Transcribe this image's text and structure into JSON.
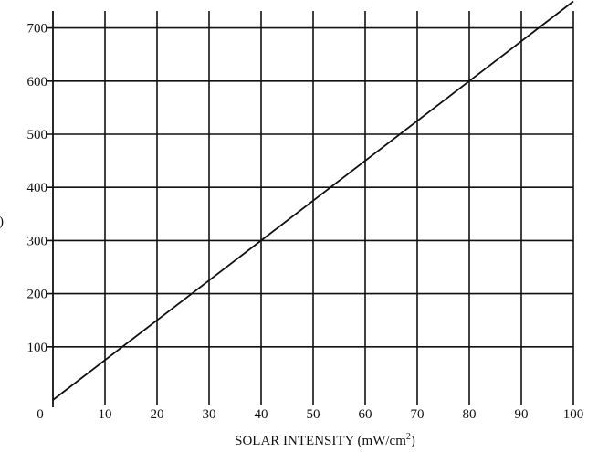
{
  "chart_data": {
    "type": "line",
    "title": "",
    "xlabel": "SOLAR INTENSITY (mW/cm²)",
    "xlabel_parts": {
      "main": "SOLAR INTENSITY (mW/cm",
      "sup": "2",
      "close": ")"
    },
    "ylabel_partial": ")",
    "xlim": [
      0,
      100
    ],
    "ylim": [
      0,
      700
    ],
    "x_ticks": [
      0,
      10,
      20,
      30,
      40,
      50,
      60,
      70,
      80,
      90,
      100
    ],
    "y_ticks": [
      100,
      200,
      300,
      400,
      500,
      600,
      700
    ],
    "grid": true,
    "series": [
      {
        "x": [
          0,
          40,
          80,
          100
        ],
        "y": [
          0,
          300,
          600,
          750
        ]
      }
    ],
    "colors": {
      "line": "#111111",
      "grid": "#111111",
      "background": "#ffffff"
    }
  }
}
